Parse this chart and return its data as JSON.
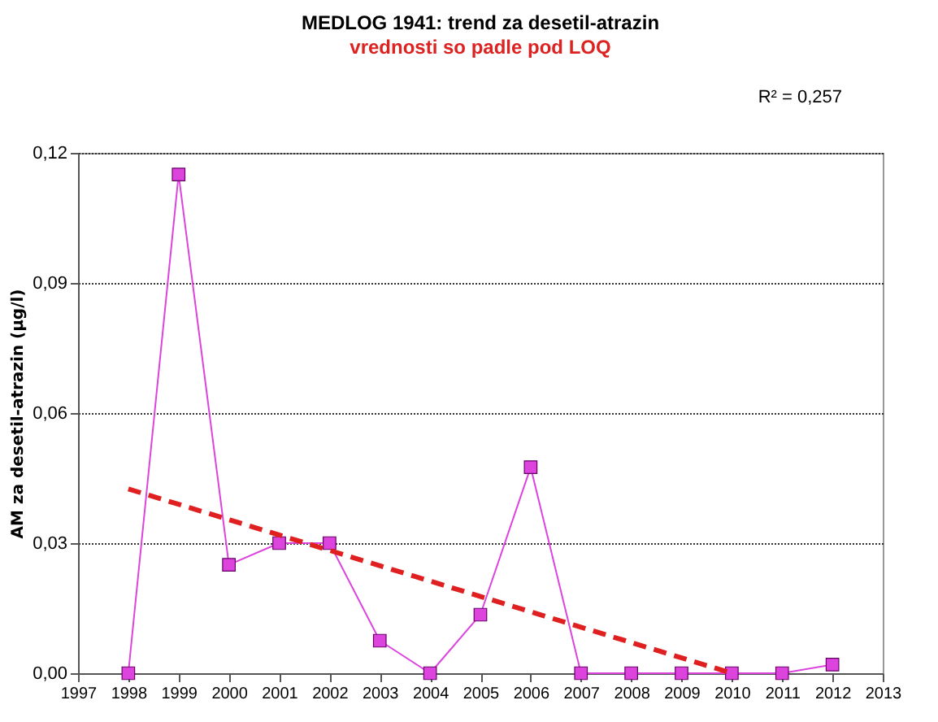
{
  "chart_data": {
    "type": "line",
    "title": "MEDLOG 1941: trend za desetil-atrazin",
    "subtitle": "vrednosti so padle pod LOQ",
    "ylabel": "AM za desetil-atrazin (µg/l)",
    "x": [
      1998,
      1999,
      2000,
      2001,
      2002,
      2003,
      2004,
      2005,
      2006,
      2007,
      2008,
      2009,
      2010,
      2011,
      2012
    ],
    "series": [
      {
        "color": "#dd44dd",
        "marker": "square",
        "line_style": "solid",
        "values": [
          0.0,
          0.115,
          0.025,
          0.03,
          0.03,
          0.0075,
          0.0,
          0.0135,
          0.0475,
          0.0,
          0.0,
          0.0,
          0.0,
          0.0,
          0.002
        ]
      },
      {
        "type": "line",
        "color": "#e02020",
        "marker": "none",
        "line_style": "dashed",
        "x": [
          1998,
          2010
        ],
        "values": [
          0.0425,
          0.0
        ]
      }
    ],
    "annotations": [
      "R² = 0,257"
    ],
    "xlim": [
      1997,
      2013
    ],
    "xticks": [
      1997,
      1998,
      1999,
      2000,
      2001,
      2002,
      2003,
      2004,
      2005,
      2006,
      2007,
      2008,
      2009,
      2010,
      2011,
      2012,
      2013
    ],
    "ylim": [
      0,
      0.12
    ],
    "yticks": [
      {
        "value": 0,
        "label": "0,00"
      },
      {
        "value": 0.03,
        "label": "0,03"
      },
      {
        "value": 0.06,
        "label": "0,06"
      },
      {
        "value": 0.09,
        "label": "0,09"
      },
      {
        "value": 0.12,
        "label": "0,12"
      }
    ],
    "grid": "y"
  }
}
